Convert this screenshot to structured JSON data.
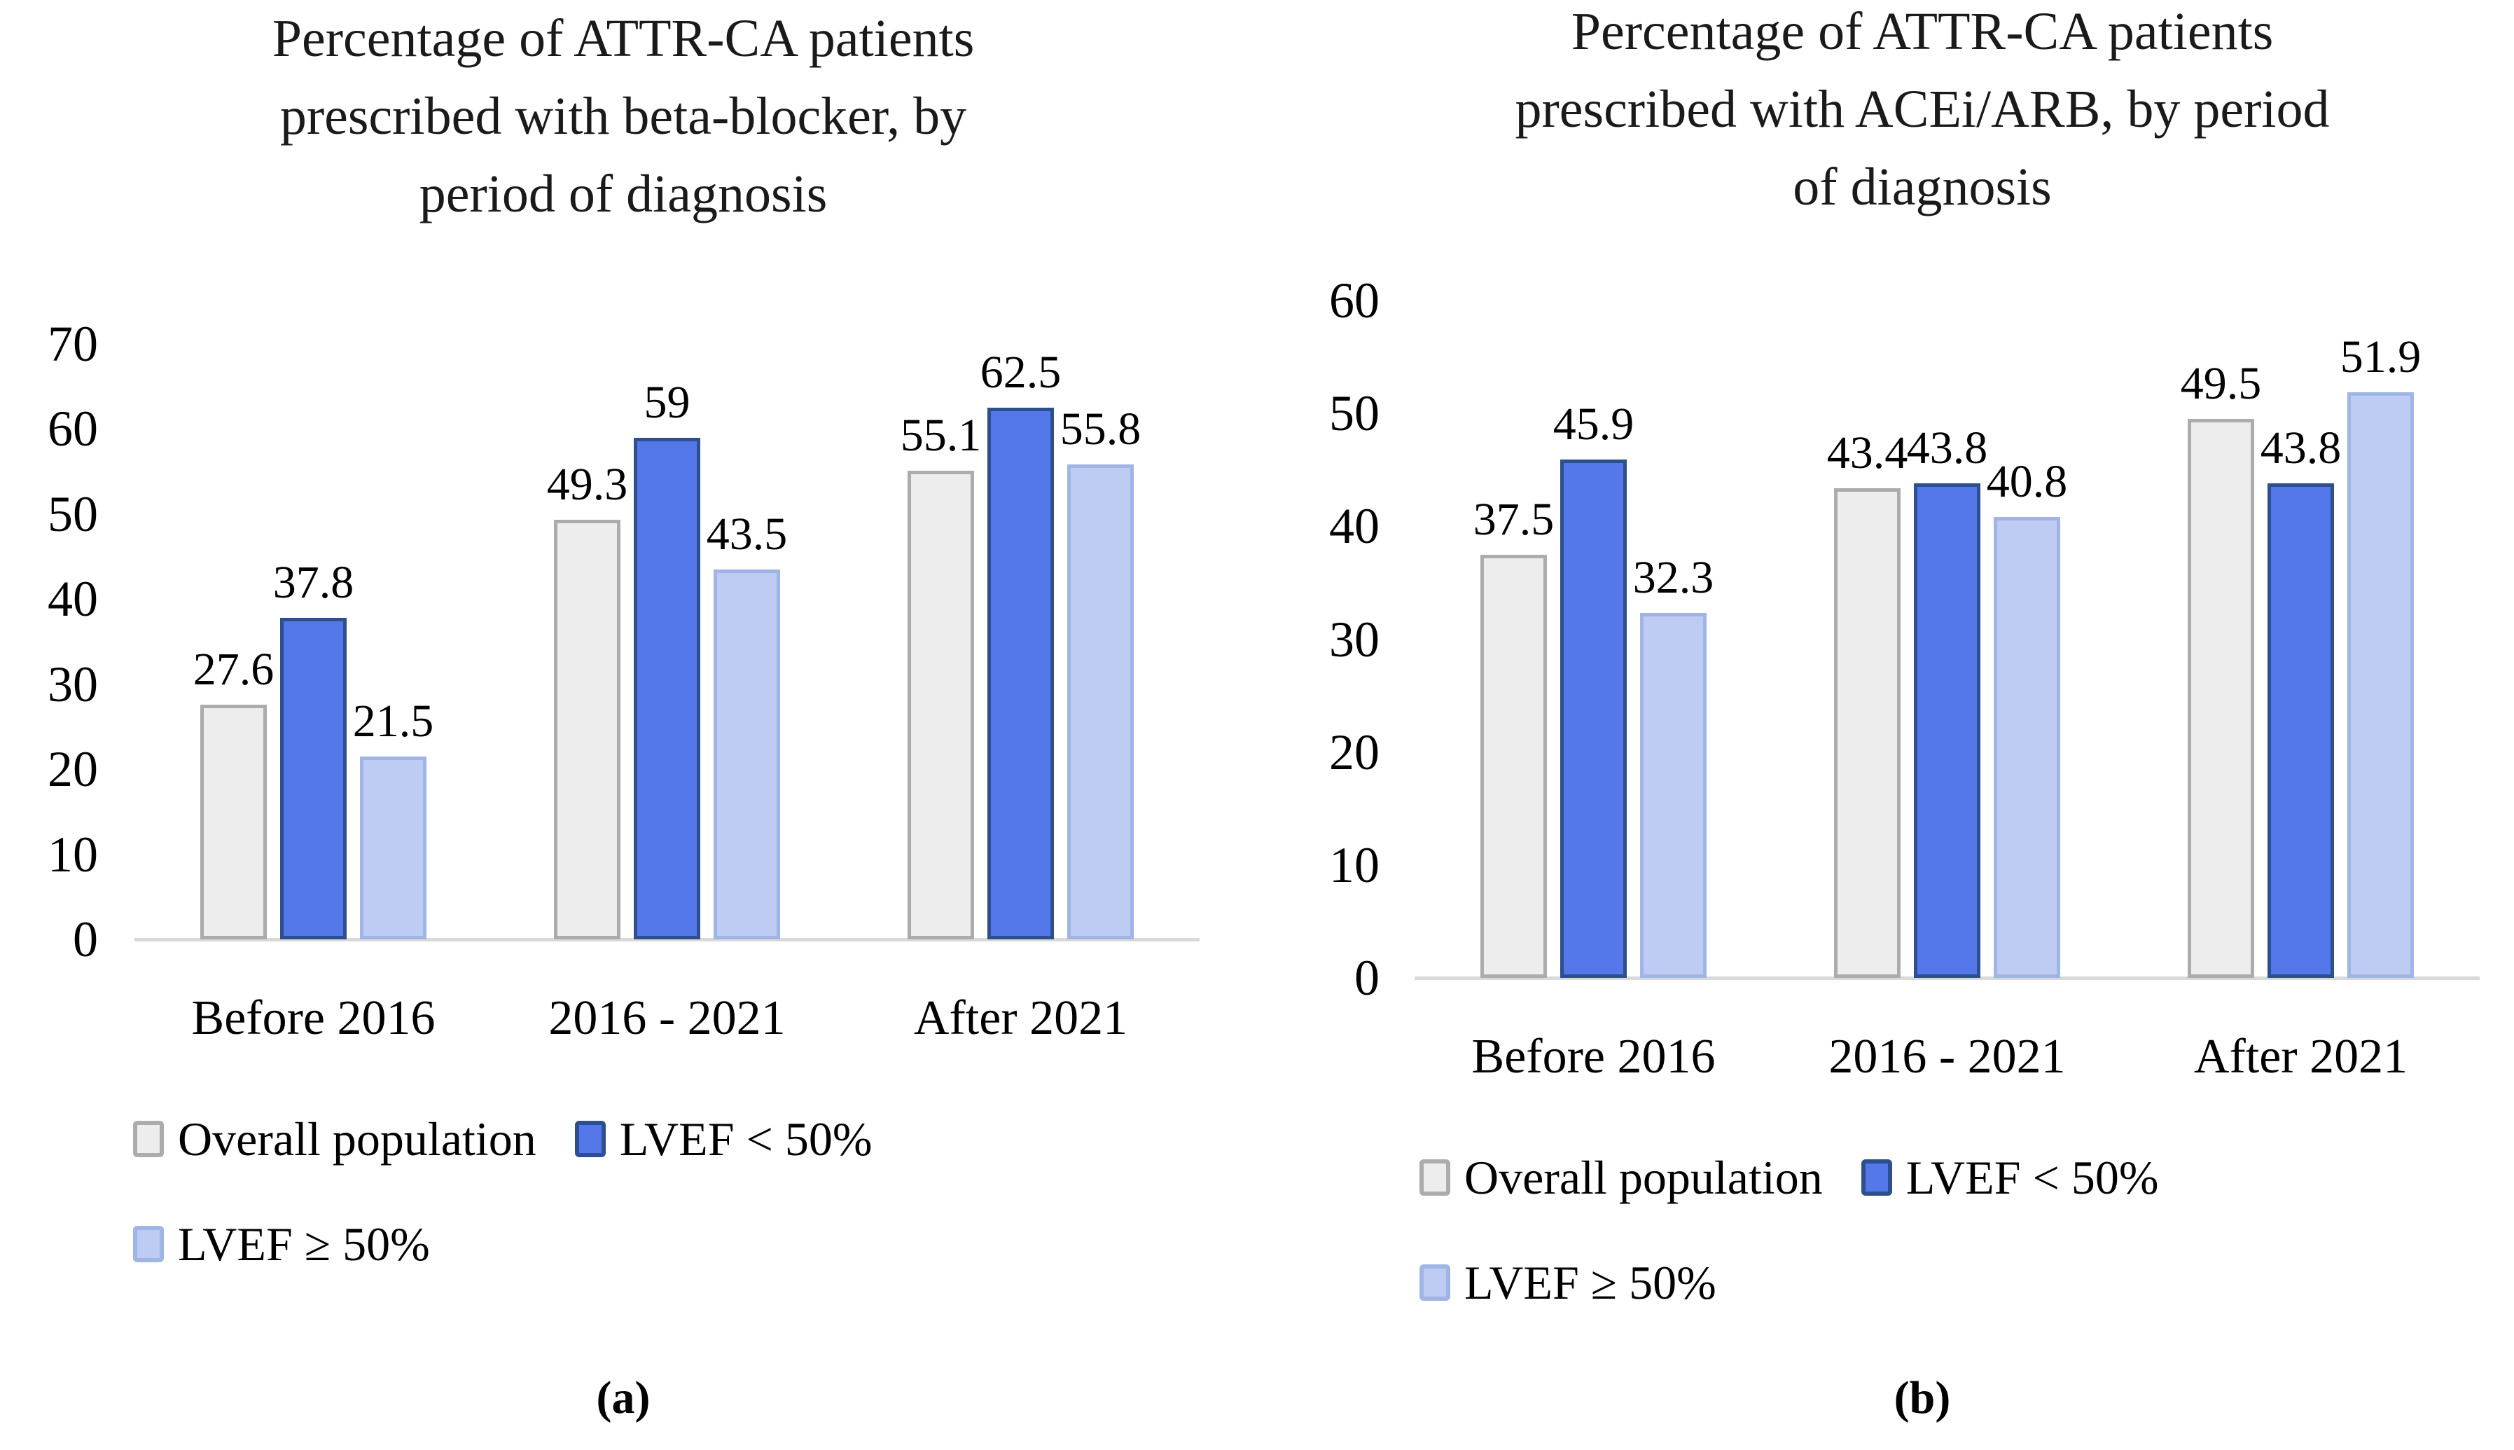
{
  "colors": {
    "overall_fill": "#EDEDED",
    "overall_border": "#ACACAC",
    "lvef_lt50_fill": "#5478E9",
    "lvef_lt50_border": "#2E4F8E",
    "lvef_ge50_fill": "#BECBF3",
    "lvef_ge50_border": "#9FB5E6",
    "axis_line": "#D9D9D9",
    "text": "#000000"
  },
  "chart_data": [
    {
      "type": "bar",
      "title": "Percentage of ATTR-CA patients prescribed with beta-blocker, by period of diagnosis",
      "title_lines": [
        "Percentage of ATTR-CA patients",
        "prescribed with beta-blocker, by",
        "period of diagnosis"
      ],
      "categories": [
        "Before 2016",
        "2016 - 2021",
        "After 2021"
      ],
      "series": [
        {
          "name": "Overall population",
          "values": [
            27.6,
            49.3,
            55.1
          ]
        },
        {
          "name": "LVEF < 50%",
          "values": [
            37.8,
            59,
            62.5
          ]
        },
        {
          "name": "LVEF ≥ 50%",
          "values": [
            21.5,
            43.5,
            55.8
          ]
        }
      ],
      "xlabel": "",
      "ylabel": "",
      "ylim": [
        0,
        70
      ],
      "yticks": [
        0,
        10,
        20,
        30,
        40,
        50,
        60,
        70
      ],
      "grid": false,
      "legend_position": "bottom",
      "panel_label": "(a)"
    },
    {
      "type": "bar",
      "title": "Percentage of ATTR-CA patients prescribed with ACEi/ARB, by period of diagnosis",
      "title_lines": [
        "Percentage of ATTR-CA patients",
        "prescribed with ACEi/ARB, by period",
        "of diagnosis"
      ],
      "categories": [
        "Before 2016",
        "2016 - 2021",
        "After 2021"
      ],
      "series": [
        {
          "name": "Overall population",
          "values": [
            37.5,
            43.4,
            49.5
          ]
        },
        {
          "name": "LVEF < 50%",
          "values": [
            45.9,
            43.8,
            43.8
          ]
        },
        {
          "name": "LVEF ≥ 50%",
          "values": [
            32.3,
            40.8,
            51.9
          ]
        }
      ],
      "xlabel": "",
      "ylabel": "",
      "ylim": [
        0,
        60
      ],
      "yticks": [
        0,
        10,
        20,
        30,
        40,
        50,
        60
      ],
      "grid": false,
      "legend_position": "bottom",
      "panel_label": "(b)"
    }
  ]
}
